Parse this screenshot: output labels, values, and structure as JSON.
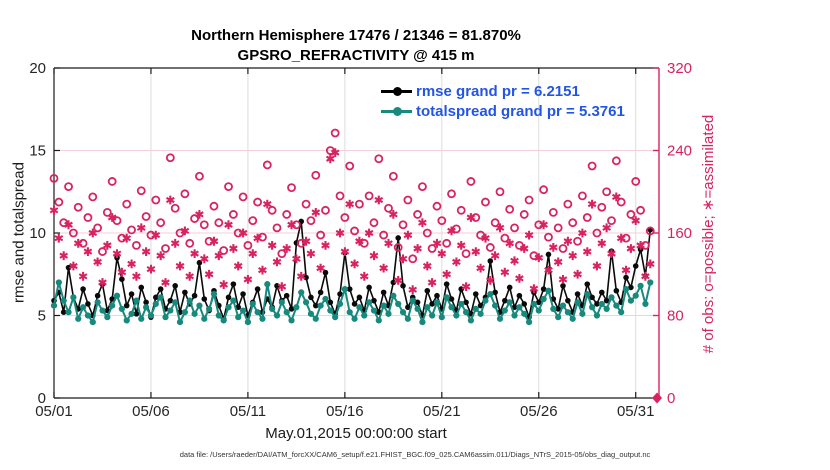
{
  "title": {
    "line1": "Northern Hemisphere 17476 / 21346 = 81.870%",
    "line2": "GPSRO_REFRACTIVITY @ 415 m"
  },
  "legend": {
    "text_color": "#2355e4",
    "items": [
      {
        "label": "rmse grand pr = 6.2151",
        "color": "#000000"
      },
      {
        "label": "totalspread grand pr = 5.3761",
        "color": "#17897d"
      }
    ]
  },
  "footer": {
    "datafile": "data file: /Users/raeder/DAI/ATM_forcXX/CAM6_setup/f.e21.FHIST_BGC.f09_025.CAM6assim.011/Diags_NTrS_2015-05/obs_diag_output.nc"
  },
  "colors": {
    "axis_dark": "#1a1a1a",
    "tick_text": "#262626",
    "pink": "#d8235f",
    "teal": "#17897d",
    "black_series": "#0a0a0a",
    "hgrid": "#f4cfdc",
    "vgrid": "#dcdcdc"
  },
  "chart_data": {
    "type": "line",
    "title": "Northern Hemisphere 17476 / 21346 = 81.870% | GPSRO_REFRACTIVITY @ 415 m",
    "xlabel": "May.01,2015 00:00:00 start",
    "x_unit": "days since 2015-05-01 00:00, 6-hourly bins",
    "x_step_days": 0.25,
    "xlim_days": [
      0,
      31.2
    ],
    "grid": true,
    "legend_position": "top-center-inside",
    "left_axis": {
      "label": "rmse and totalspread",
      "ylim": [
        0,
        20
      ],
      "ticks": [
        0,
        5,
        10,
        15,
        20
      ]
    },
    "right_axis": {
      "label": "# of obs: o=possible; ∗=assimilated",
      "ylim": [
        0,
        320
      ],
      "ticks": [
        0,
        80,
        160,
        240,
        320
      ]
    },
    "x_ticks": [
      {
        "day": 0,
        "label": "05/01"
      },
      {
        "day": 5,
        "label": "05/06"
      },
      {
        "day": 10,
        "label": "05/11"
      },
      {
        "day": 15,
        "label": "05/16"
      },
      {
        "day": 20,
        "label": "05/21"
      },
      {
        "day": 25,
        "label": "05/26"
      },
      {
        "day": 30,
        "label": "05/31"
      }
    ],
    "series": [
      {
        "name": "rmse",
        "axis": "left",
        "color": "#0a0a0a",
        "marker": "dot",
        "line": true,
        "grand_pr": 6.2151,
        "values": [
          5.9,
          6.4,
          5.2,
          7.9,
          6.1,
          5.4,
          6.6,
          5.7,
          5.0,
          6.2,
          6.9,
          5.3,
          6.0,
          8.5,
          7.2,
          5.6,
          6.3,
          5.1,
          6.7,
          5.8,
          4.9,
          6.1,
          6.6,
          5.4,
          5.9,
          6.8,
          5.2,
          6.4,
          5.7,
          6.2,
          8.2,
          6.0,
          5.3,
          6.5,
          5.6,
          4.8,
          6.1,
          6.9,
          5.5,
          6.3,
          5.0,
          5.8,
          6.6,
          5.2,
          6.0,
          5.5,
          6.8,
          5.9,
          6.2,
          5.4,
          9.4,
          10.7,
          7.3,
          6.1,
          5.6,
          6.4,
          7.6,
          5.8,
          5.1,
          6.3,
          8.8,
          6.6,
          5.7,
          6.1,
          5.3,
          6.7,
          5.9,
          5.2,
          6.4,
          5.6,
          7.0,
          9.7,
          6.8,
          5.5,
          6.1,
          5.8,
          5.0,
          6.5,
          5.7,
          6.2,
          5.4,
          6.9,
          6.0,
          5.3,
          6.6,
          5.8,
          5.1,
          6.3,
          5.6,
          6.1,
          8.3,
          6.4,
          5.2,
          5.9,
          6.7,
          5.5,
          6.2,
          5.7,
          4.9,
          6.4,
          5.8,
          6.6,
          8.7,
          6.0,
          5.4,
          6.8,
          5.9,
          5.2,
          6.3,
          5.6,
          6.9,
          6.1,
          5.7,
          6.4,
          5.9,
          8.9,
          6.5,
          5.8,
          7.3,
          6.7,
          8.0,
          9.0,
          7.4,
          10.2
        ]
      },
      {
        "name": "totalspread",
        "axis": "left",
        "color": "#17897d",
        "marker": "dot",
        "line": true,
        "grand_pr": 5.3761,
        "values": [
          5.6,
          7.0,
          5.9,
          5.2,
          6.1,
          4.8,
          5.5,
          5.0,
          4.6,
          5.8,
          5.3,
          4.9,
          5.6,
          6.2,
          5.4,
          4.7,
          5.1,
          5.9,
          4.8,
          5.5,
          5.0,
          5.7,
          6.1,
          4.9,
          5.3,
          5.8,
          4.6,
          5.2,
          5.9,
          5.1,
          5.6,
          4.8,
          5.4,
          6.3,
          5.0,
          4.7,
          5.5,
          5.9,
          4.9,
          5.3,
          4.6,
          5.7,
          5.2,
          4.8,
          6.9,
          5.4,
          5.0,
          5.8,
          5.2,
          4.7,
          5.5,
          6.4,
          5.8,
          5.1,
          4.8,
          5.6,
          6.0,
          5.3,
          4.9,
          5.7,
          6.6,
          5.2,
          4.8,
          5.5,
          5.0,
          5.8,
          5.3,
          4.7,
          5.6,
          5.1,
          6.2,
          5.7,
          5.2,
          4.8,
          5.9,
          5.4,
          4.6,
          5.5,
          5.0,
          5.8,
          4.9,
          6.1,
          5.5,
          5.0,
          5.7,
          5.2,
          4.7,
          5.4,
          5.1,
          5.9,
          6.3,
          5.6,
          4.8,
          5.3,
          5.8,
          5.0,
          5.5,
          5.1,
          4.6,
          5.7,
          5.3,
          6.0,
          6.5,
          5.4,
          4.9,
          5.6,
          5.2,
          4.8,
          5.8,
          5.1,
          6.3,
          5.5,
          5.0,
          5.7,
          5.4,
          6.1,
          5.6,
          5.2,
          6.6,
          5.9,
          6.2,
          6.8,
          5.7,
          7.0
        ]
      },
      {
        "name": "possible",
        "axis": "right",
        "color": "#d8235f",
        "marker": "circle-open",
        "line": false,
        "values": [
          213,
          190,
          170,
          205,
          160,
          185,
          150,
          175,
          195,
          165,
          142,
          180,
          210,
          172,
          155,
          188,
          163,
          148,
          201,
          176,
          158,
          192,
          170,
          145,
          233,
          184,
          160,
          198,
          150,
          174,
          215,
          168,
          152,
          186,
          170,
          143,
          205,
          178,
          160,
          195,
          148,
          172,
          190,
          156,
          226,
          182,
          165,
          140,
          178,
          204,
          168,
          150,
          188,
          172,
          216,
          158,
          182,
          240,
          257,
          196,
          175,
          225,
          162,
          188,
          150,
          196,
          170,
          232,
          158,
          184,
          215,
          146,
          168,
          192,
          135,
          178,
          205,
          160,
          145,
          186,
          172,
          150,
          198,
          164,
          182,
          140,
          210,
          175,
          158,
          190,
          146,
          170,
          200,
          155,
          183,
          165,
          148,
          178,
          192,
          138,
          168,
          202,
          156,
          180,
          165,
          145,
          188,
          170,
          152,
          196,
          175,
          225,
          160,
          185,
          200,
          172,
          230,
          190,
          155,
          178,
          210,
          182,
          148,
          162
        ]
      },
      {
        "name": "assimilated",
        "axis": "right",
        "color": "#d8235f",
        "marker": "asterisk",
        "line": false,
        "values": [
          182,
          155,
          138,
          168,
          128,
          150,
          118,
          142,
          160,
          132,
          112,
          148,
          175,
          140,
          122,
          155,
          130,
          118,
          165,
          142,
          125,
          158,
          138,
          112,
          192,
          150,
          128,
          162,
          118,
          140,
          178,
          135,
          120,
          152,
          138,
          110,
          168,
          145,
          128,
          160,
          115,
          140,
          155,
          124,
          188,
          148,
          132,
          108,
          145,
          168,
          135,
          118,
          152,
          140,
          180,
          126,
          148,
          232,
          238,
          160,
          142,
          188,
          130,
          152,
          118,
          160,
          138,
          192,
          126,
          150,
          178,
          114,
          135,
          158,
          105,
          145,
          170,
          128,
          112,
          150,
          140,
          120,
          162,
          132,
          148,
          108,
          175,
          142,
          126,
          155,
          114,
          138,
          165,
          122,
          150,
          133,
          116,
          145,
          158,
          106,
          136,
          168,
          124,
          146,
          132,
          115,
          152,
          138,
          120,
          160,
          142,
          188,
          128,
          150,
          165,
          140,
          195,
          155,
          124,
          145,
          172,
          148,
          118,
          130
        ]
      }
    ],
    "corner_marker": {
      "day": 31.1,
      "value": 0,
      "axis": "right",
      "shape": "diamond",
      "color": "#d8235f"
    }
  }
}
